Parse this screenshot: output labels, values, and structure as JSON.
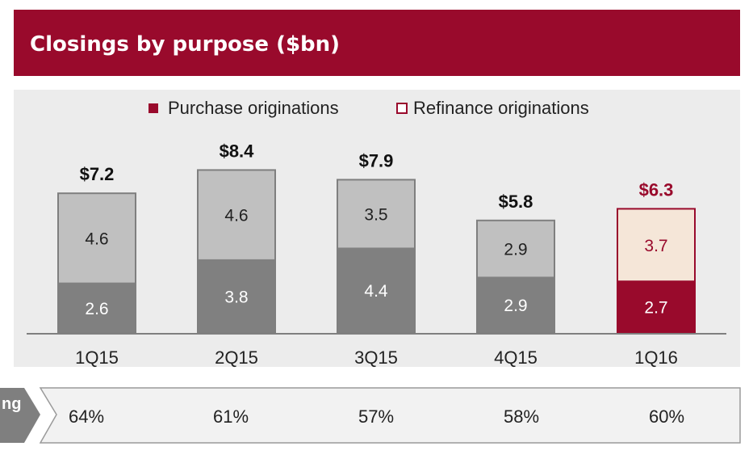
{
  "header": {
    "title": "Closings by purpose ($bn)"
  },
  "legend": {
    "purchase_label": "Purchase originations",
    "refinance_label": "Refinance originations"
  },
  "colors": {
    "header_bg": "#990a2c",
    "purchase": "#808080",
    "refinance": "#c0c0c0",
    "purchase_highlight": "#990a2c",
    "refinance_highlight": "#f5e6d8",
    "highlight_text": "#990a2c"
  },
  "chart_data": {
    "type": "bar",
    "stacked": true,
    "categories": [
      "1Q15",
      "2Q15",
      "3Q15",
      "4Q15",
      "1Q16"
    ],
    "series": [
      {
        "name": "Purchase originations",
        "values": [
          2.6,
          3.8,
          4.4,
          2.9,
          2.7
        ]
      },
      {
        "name": "Refinance originations",
        "values": [
          4.6,
          4.6,
          3.5,
          2.9,
          3.7
        ]
      }
    ],
    "totals": [
      "$7.2",
      "$8.4",
      "$7.9",
      "$5.8",
      "$6.3"
    ],
    "highlight_index": 4,
    "legend_position": "top-center",
    "grid": false
  },
  "bottom_row": {
    "label": "ng",
    "values": [
      "64%",
      "61%",
      "57%",
      "58%",
      "60%"
    ]
  }
}
